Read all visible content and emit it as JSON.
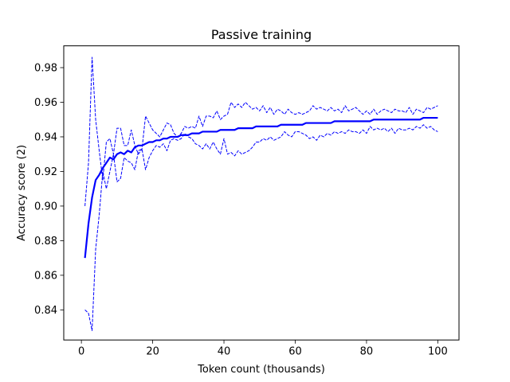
{
  "chart_data": {
    "type": "line",
    "title": "Passive training",
    "xlabel": "Token count (thousands)",
    "ylabel": "Accuracy score (2)",
    "xlim": [
      -4.95,
      105.95
    ],
    "ylim": [
      0.8226,
      0.9926
    ],
    "xticks": [
      0,
      20,
      40,
      60,
      80,
      100
    ],
    "yticks": [
      0.84,
      0.86,
      0.88,
      0.9,
      0.92,
      0.94,
      0.96,
      0.98
    ],
    "ytick_labels": [
      "0.84",
      "0.86",
      "0.88",
      "0.90",
      "0.92",
      "0.94",
      "0.96",
      "0.98"
    ],
    "grid": false,
    "line_color": "#0000ff",
    "x": [
      1,
      2,
      3,
      4,
      5,
      6,
      7,
      8,
      9,
      10,
      11,
      12,
      13,
      14,
      15,
      16,
      17,
      18,
      19,
      20,
      21,
      22,
      23,
      24,
      25,
      26,
      27,
      28,
      29,
      30,
      31,
      32,
      33,
      34,
      35,
      36,
      37,
      38,
      39,
      40,
      41,
      42,
      43,
      44,
      45,
      46,
      47,
      48,
      49,
      50,
      51,
      52,
      53,
      54,
      55,
      56,
      57,
      58,
      59,
      60,
      61,
      62,
      63,
      64,
      65,
      66,
      67,
      68,
      69,
      70,
      71,
      72,
      73,
      74,
      75,
      76,
      77,
      78,
      79,
      80,
      81,
      82,
      83,
      84,
      85,
      86,
      87,
      88,
      89,
      90,
      91,
      92,
      93,
      94,
      95,
      96,
      97,
      98,
      99,
      100
    ],
    "series": [
      {
        "style": "solid",
        "values": [
          0.87,
          0.89,
          0.905,
          0.915,
          0.918,
          0.922,
          0.925,
          0.928,
          0.927,
          0.93,
          0.931,
          0.93,
          0.932,
          0.931,
          0.934,
          0.935,
          0.935,
          0.936,
          0.937,
          0.937,
          0.938,
          0.938,
          0.939,
          0.939,
          0.94,
          0.94,
          0.94,
          0.941,
          0.941,
          0.941,
          0.942,
          0.942,
          0.942,
          0.943,
          0.943,
          0.943,
          0.943,
          0.943,
          0.944,
          0.944,
          0.944,
          0.944,
          0.944,
          0.945,
          0.945,
          0.945,
          0.945,
          0.945,
          0.946,
          0.946,
          0.946,
          0.946,
          0.946,
          0.946,
          0.946,
          0.947,
          0.947,
          0.947,
          0.947,
          0.947,
          0.947,
          0.947,
          0.948,
          0.948,
          0.948,
          0.948,
          0.948,
          0.948,
          0.948,
          0.948,
          0.949,
          0.949,
          0.949,
          0.949,
          0.949,
          0.949,
          0.949,
          0.949,
          0.949,
          0.949,
          0.949,
          0.95,
          0.95,
          0.95,
          0.95,
          0.95,
          0.95,
          0.95,
          0.95,
          0.95,
          0.95,
          0.95,
          0.95,
          0.95,
          0.95,
          0.951,
          0.951,
          0.951,
          0.951,
          0.951
        ]
      },
      {
        "style": "dashed",
        "values": [
          0.9,
          0.925,
          0.986,
          0.95,
          0.932,
          0.915,
          0.937,
          0.939,
          0.93,
          0.945,
          0.945,
          0.935,
          0.935,
          0.944,
          0.935,
          0.93,
          0.933,
          0.952,
          0.948,
          0.944,
          0.942,
          0.94,
          0.944,
          0.948,
          0.947,
          0.942,
          0.94,
          0.942,
          0.946,
          0.945,
          0.946,
          0.945,
          0.952,
          0.946,
          0.952,
          0.952,
          0.951,
          0.955,
          0.95,
          0.952,
          0.953,
          0.96,
          0.957,
          0.959,
          0.957,
          0.96,
          0.958,
          0.956,
          0.957,
          0.955,
          0.958,
          0.954,
          0.957,
          0.953,
          0.956,
          0.955,
          0.953,
          0.956,
          0.954,
          0.953,
          0.954,
          0.953,
          0.954,
          0.955,
          0.958,
          0.956,
          0.957,
          0.956,
          0.955,
          0.957,
          0.955,
          0.956,
          0.954,
          0.958,
          0.955,
          0.956,
          0.957,
          0.955,
          0.953,
          0.955,
          0.953,
          0.956,
          0.953,
          0.955,
          0.956,
          0.955,
          0.954,
          0.956,
          0.955,
          0.955,
          0.954,
          0.957,
          0.953,
          0.956,
          0.955,
          0.954,
          0.957,
          0.956,
          0.957,
          0.958
        ]
      },
      {
        "style": "dashed",
        "values": [
          0.84,
          0.838,
          0.828,
          0.875,
          0.895,
          0.92,
          0.91,
          0.92,
          0.93,
          0.914,
          0.916,
          0.928,
          0.926,
          0.925,
          0.921,
          0.932,
          0.933,
          0.921,
          0.928,
          0.932,
          0.935,
          0.934,
          0.936,
          0.932,
          0.938,
          0.939,
          0.938,
          0.939,
          0.942,
          0.94,
          0.939,
          0.936,
          0.935,
          0.933,
          0.936,
          0.933,
          0.937,
          0.933,
          0.93,
          0.939,
          0.93,
          0.931,
          0.929,
          0.932,
          0.93,
          0.931,
          0.932,
          0.934,
          0.937,
          0.937,
          0.939,
          0.938,
          0.94,
          0.938,
          0.939,
          0.94,
          0.943,
          0.941,
          0.94,
          0.943,
          0.943,
          0.942,
          0.941,
          0.939,
          0.94,
          0.938,
          0.941,
          0.94,
          0.942,
          0.941,
          0.943,
          0.942,
          0.943,
          0.942,
          0.944,
          0.943,
          0.943,
          0.942,
          0.944,
          0.942,
          0.946,
          0.944,
          0.945,
          0.944,
          0.945,
          0.943,
          0.945,
          0.942,
          0.945,
          0.944,
          0.944,
          0.945,
          0.944,
          0.946,
          0.945,
          0.947,
          0.945,
          0.946,
          0.944,
          0.943
        ]
      }
    ]
  }
}
